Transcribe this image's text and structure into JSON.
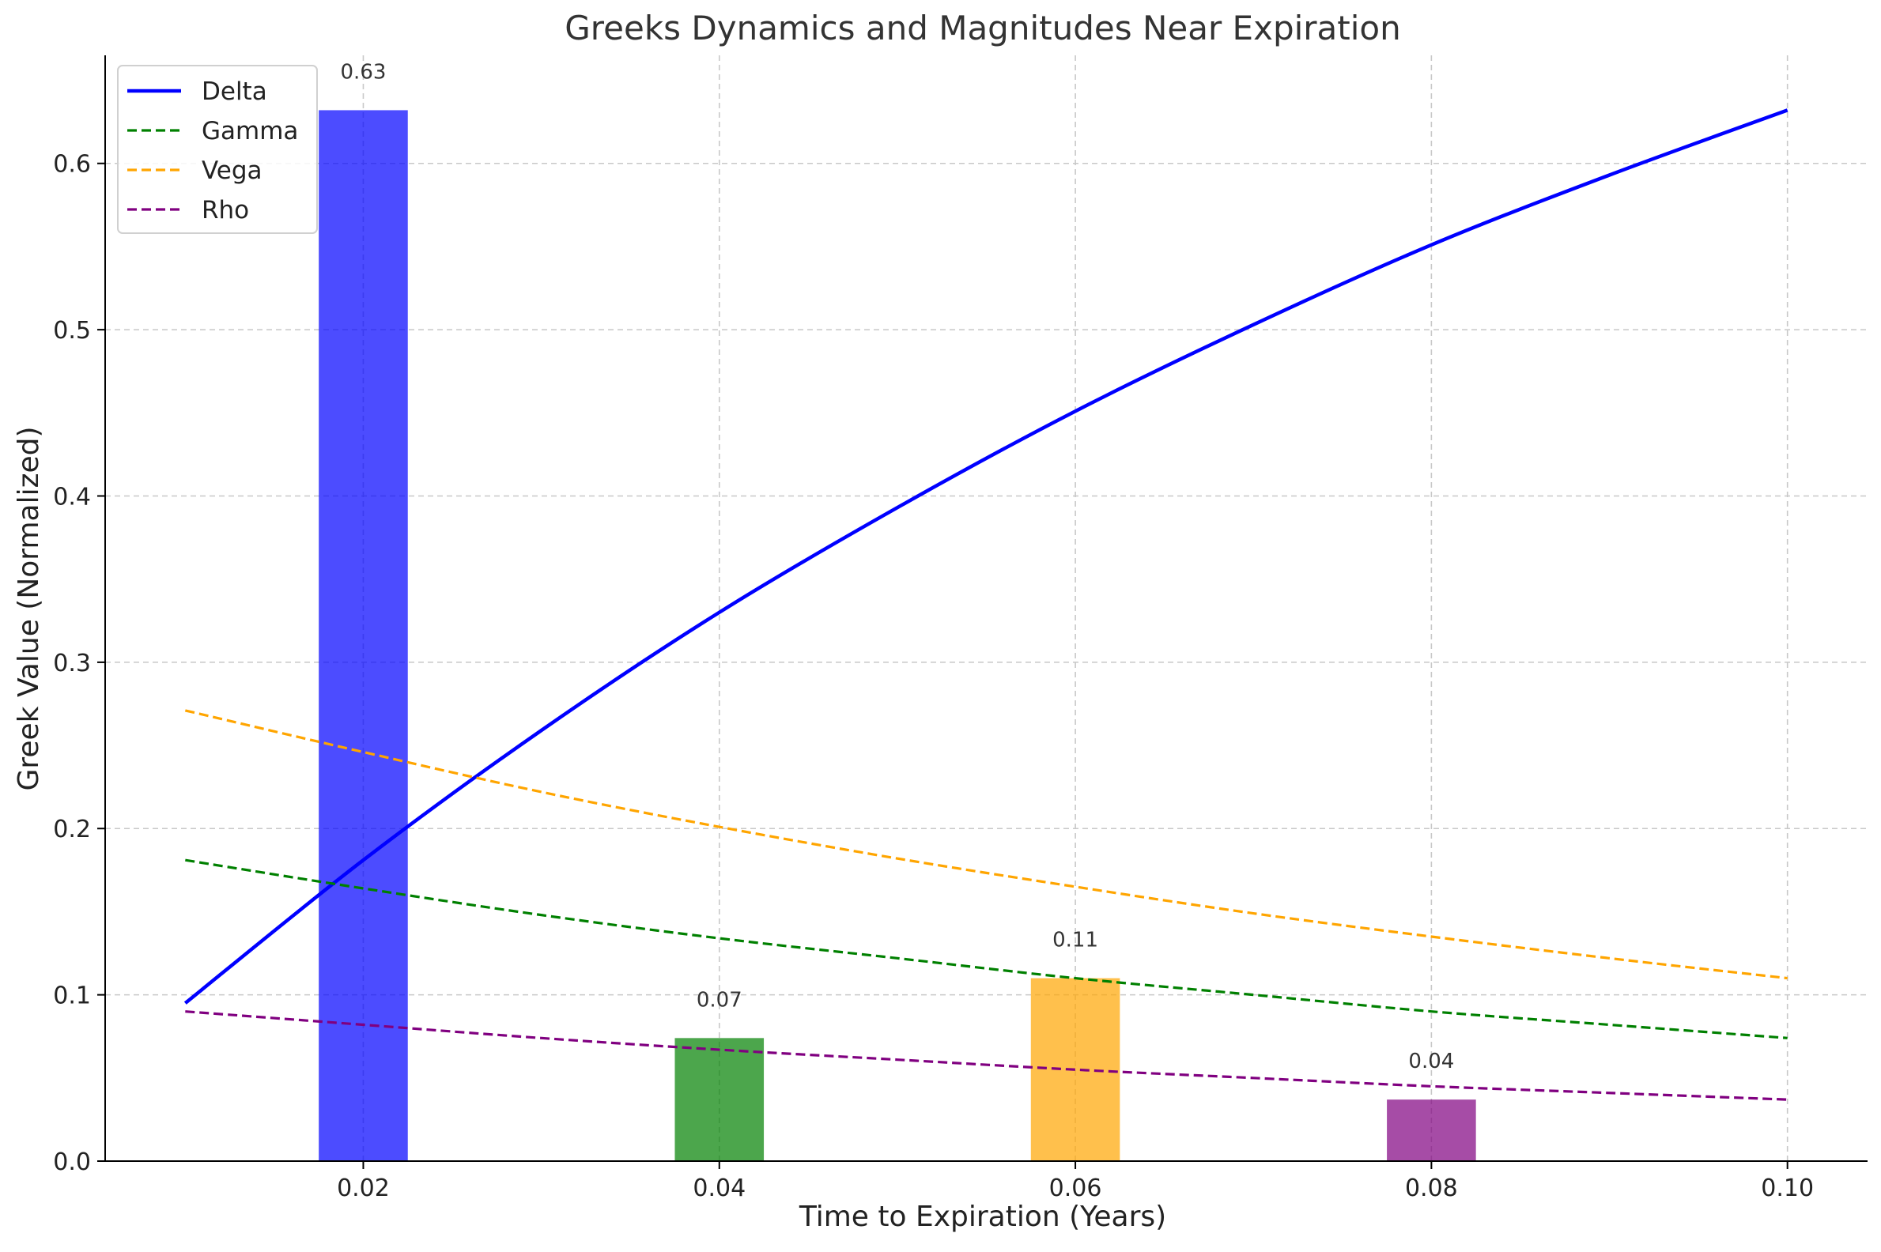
{
  "chart_data": {
    "type": "line",
    "title": "Greeks Dynamics and Magnitudes Near Expiration",
    "xlabel": "Time to Expiration (Years)",
    "ylabel": "Greek Value (Normalized)",
    "xlim": [
      0.0055,
      0.1045
    ],
    "ylim": [
      0.0,
      0.665
    ],
    "xticks": [
      0.02,
      0.04,
      0.06,
      0.08,
      0.1
    ],
    "xtick_labels": [
      "0.02",
      "0.04",
      "0.06",
      "0.08",
      "0.10"
    ],
    "yticks": [
      0.0,
      0.1,
      0.2,
      0.3,
      0.4,
      0.5,
      0.6
    ],
    "ytick_labels": [
      "0.0",
      "0.1",
      "0.2",
      "0.3",
      "0.4",
      "0.5",
      "0.6"
    ],
    "grid": true,
    "legend_position": "top-left",
    "series": [
      {
        "name": "Delta",
        "color": "#0000ff",
        "style": "solid",
        "x": [
          0.01,
          0.02,
          0.03,
          0.04,
          0.05,
          0.06,
          0.07,
          0.08,
          0.09,
          0.1
        ],
        "values": [
          0.095,
          0.181,
          0.259,
          0.33,
          0.393,
          0.451,
          0.503,
          0.551,
          0.593,
          0.632
        ]
      },
      {
        "name": "Gamma",
        "color": "#008000",
        "style": "dashed",
        "x": [
          0.01,
          0.02,
          0.03,
          0.04,
          0.05,
          0.06,
          0.07,
          0.08,
          0.09,
          0.1
        ],
        "values": [
          0.181,
          0.164,
          0.148,
          0.134,
          0.122,
          0.11,
          0.1,
          0.09,
          0.082,
          0.074
        ]
      },
      {
        "name": "Vega",
        "color": "#ffa500",
        "style": "dashed",
        "x": [
          0.01,
          0.02,
          0.03,
          0.04,
          0.05,
          0.06,
          0.07,
          0.08,
          0.09,
          0.1
        ],
        "values": [
          0.271,
          0.246,
          0.222,
          0.201,
          0.182,
          0.165,
          0.149,
          0.135,
          0.122,
          0.11
        ]
      },
      {
        "name": "Rho",
        "color": "#800080",
        "style": "dashed",
        "x": [
          0.01,
          0.02,
          0.03,
          0.04,
          0.05,
          0.06,
          0.07,
          0.08,
          0.09,
          0.1
        ],
        "values": [
          0.09,
          0.082,
          0.074,
          0.067,
          0.061,
          0.055,
          0.05,
          0.045,
          0.041,
          0.037
        ]
      }
    ],
    "bars": [
      {
        "x": 0.02,
        "value": 0.632,
        "label": "0.63",
        "color": "#0000ff"
      },
      {
        "x": 0.04,
        "value": 0.074,
        "label": "0.07",
        "color": "#008000"
      },
      {
        "x": 0.06,
        "value": 0.11,
        "label": "0.11",
        "color": "#ffa500"
      },
      {
        "x": 0.08,
        "value": 0.037,
        "label": "0.04",
        "color": "#800080"
      }
    ],
    "bar_width": 0.005
  }
}
